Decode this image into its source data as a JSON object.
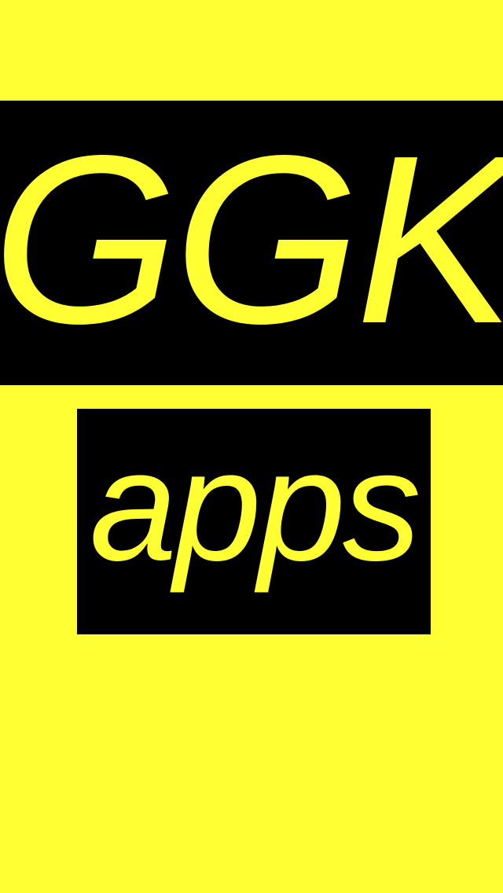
{
  "splash": {
    "title": "GGK",
    "subtitle": "apps"
  },
  "colors": {
    "background": "#FFFF33",
    "box": "#000000",
    "text": "#FFFF33"
  }
}
